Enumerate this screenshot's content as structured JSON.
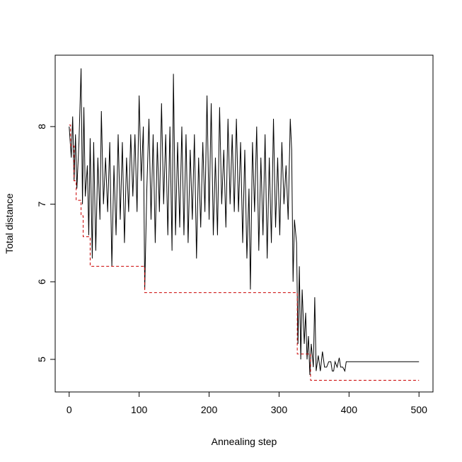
{
  "chart_data": {
    "type": "line",
    "x_label": "Annealing step",
    "y_label": "Total distance",
    "xlim": [
      -20,
      520
    ],
    "ylim": [
      4.58,
      8.92
    ],
    "xticks": [
      0,
      100,
      200,
      300,
      400,
      500
    ],
    "yticks": [
      5,
      6,
      7,
      8
    ],
    "series": [
      {
        "color": "#000000",
        "dash": false,
        "x": [
          0,
          3,
          5,
          7,
          9,
          11,
          14,
          17,
          19,
          21,
          23,
          26,
          28,
          30,
          33,
          35,
          38,
          41,
          44,
          46,
          49,
          52,
          55,
          58,
          61,
          64,
          67,
          70,
          73,
          76,
          79,
          82,
          85,
          88,
          91,
          94,
          97,
          100,
          103,
          106,
          108,
          111,
          114,
          117,
          120,
          123,
          126,
          129,
          132,
          135,
          138,
          141,
          144,
          147,
          149,
          152,
          155,
          158,
          161,
          164,
          167,
          170,
          173,
          176,
          179,
          182,
          185,
          188,
          191,
          194,
          197,
          200,
          203,
          206,
          209,
          212,
          215,
          218,
          221,
          224,
          227,
          230,
          233,
          236,
          239,
          242,
          245,
          248,
          251,
          254,
          257,
          259,
          262,
          265,
          268,
          271,
          274,
          277,
          280,
          283,
          286,
          289,
          292,
          295,
          298,
          301,
          304,
          307,
          310,
          313,
          316,
          318,
          320,
          322,
          325,
          327,
          329,
          331,
          333,
          336,
          338,
          340,
          342,
          344,
          346,
          349,
          351,
          353,
          356,
          359,
          362,
          365,
          368,
          371,
          374,
          376,
          378,
          380,
          383,
          386,
          388,
          391,
          394,
          396,
          500
        ],
        "values": [
          8.0,
          7.6,
          8.13,
          7.3,
          7.9,
          7.2,
          7.8,
          8.75,
          7.0,
          8.25,
          7.1,
          7.5,
          6.6,
          7.85,
          6.3,
          7.8,
          6.4,
          7.6,
          6.8,
          8.2,
          7.0,
          7.6,
          6.9,
          7.8,
          6.2,
          7.5,
          6.6,
          7.9,
          6.8,
          7.8,
          6.5,
          7.6,
          6.9,
          7.9,
          7.1,
          7.9,
          6.9,
          8.4,
          7.3,
          8.0,
          5.9,
          7.2,
          8.1,
          6.8,
          7.9,
          6.5,
          7.8,
          6.9,
          8.3,
          7.0,
          7.9,
          6.6,
          8.0,
          6.4,
          8.68,
          6.6,
          7.8,
          6.7,
          8.0,
          6.6,
          7.9,
          6.5,
          7.7,
          6.8,
          7.9,
          6.3,
          7.6,
          6.7,
          7.8,
          6.9,
          8.4,
          6.8,
          8.3,
          6.6,
          7.6,
          6.6,
          8.25,
          7.0,
          7.7,
          6.7,
          8.1,
          7.0,
          7.9,
          6.9,
          8.1,
          6.9,
          7.8,
          6.5,
          7.7,
          6.3,
          7.2,
          5.9,
          7.8,
          6.9,
          8.0,
          6.4,
          7.6,
          6.6,
          7.9,
          6.3,
          7.6,
          6.5,
          8.1,
          6.7,
          7.6,
          6.6,
          7.8,
          7.0,
          7.5,
          6.8,
          8.1,
          7.7,
          6.0,
          6.8,
          6.5,
          5.2,
          6.2,
          5.0,
          5.9,
          5.2,
          5.6,
          5.0,
          5.3,
          4.8,
          5.2,
          4.9,
          5.8,
          4.85,
          5.05,
          4.85,
          5.1,
          4.9,
          4.9,
          4.97,
          4.97,
          4.85,
          4.85,
          4.97,
          4.9,
          5.02,
          4.9,
          4.9,
          4.85,
          4.97,
          4.97
        ]
      },
      {
        "color": "#cc0000",
        "dash": true,
        "x": [
          0,
          2,
          2,
          7,
          7,
          10,
          10,
          17,
          17,
          20,
          20,
          30,
          30,
          108,
          108,
          326,
          326,
          345,
          345,
          500
        ],
        "values": [
          8.02,
          8.02,
          7.75,
          7.75,
          7.3,
          7.3,
          7.05,
          7.05,
          6.85,
          6.85,
          6.58,
          6.58,
          6.2,
          6.2,
          5.86,
          5.86,
          5.07,
          5.07,
          4.73,
          4.73
        ]
      }
    ]
  }
}
